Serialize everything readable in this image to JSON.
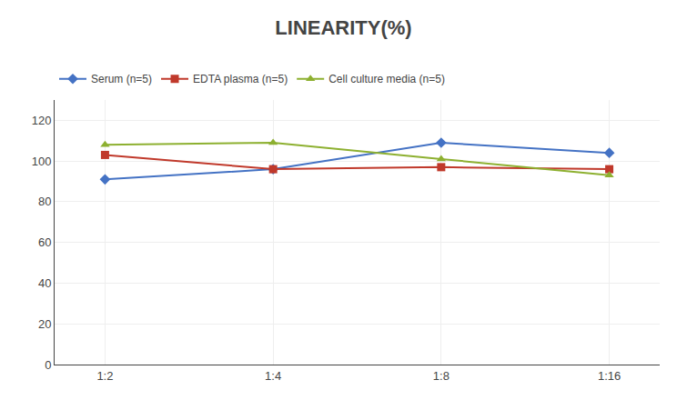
{
  "chart_data": {
    "type": "line",
    "title": "LINEARITY(%)",
    "categories": [
      "1:2",
      "1:4",
      "1:8",
      "1:16"
    ],
    "series": [
      {
        "name": "Serum (n=5)",
        "color": "#4472C4",
        "marker": "diamond",
        "values": [
          91,
          96,
          109,
          104
        ]
      },
      {
        "name": "EDTA plasma (n=5)",
        "color": "#C0392B",
        "marker": "square",
        "values": [
          103,
          96,
          97,
          96
        ]
      },
      {
        "name": "Cell culture media (n=5)",
        "color": "#8DB030",
        "marker": "triangle-up",
        "values": [
          108,
          109,
          101,
          93
        ]
      }
    ],
    "ylim": [
      0,
      130
    ],
    "yticks": [
      0,
      20,
      40,
      60,
      80,
      100,
      120
    ],
    "grid": true,
    "legend": "top"
  }
}
